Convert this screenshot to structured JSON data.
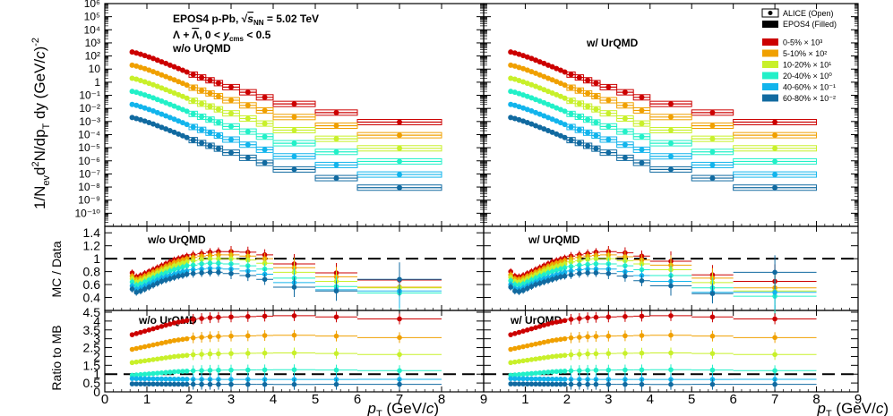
{
  "chart_data": {
    "type": "scatter",
    "title": "EPOS4 p-Pb, √s_NN = 5.02 TeV",
    "title_parts": {
      "pre": "EPOS4 p-Pb, √",
      "s": "s",
      "sub": "NN",
      "post": " = 5.02 TeV"
    },
    "subtitle": "Λ + Λ̄, 0 < y_cms < 0.5",
    "subtitle_parts": {
      "pre": "Λ + ",
      "bar": "Λ",
      "mid": ", 0 < ",
      "y": "y",
      "sub": "cms",
      "post": " < 0.5"
    },
    "xlabel": "p_T (GeV/c)",
    "xlabel_parts": {
      "p": "p",
      "sub": "T",
      "mid": " (GeV/",
      "c": "c",
      "post": ")"
    },
    "ylabel_spectra": "1/N_ev d²N/dp_T dy (GeV/c)⁻²",
    "ylabel_spectra_parts": {
      "a": "1/N",
      "ev": "ev",
      "b": "d",
      "sup2": "2",
      "c": "N/dp",
      "T": "T",
      "d": " dy (GeV/",
      "e": "c",
      "f": ")",
      "sup": "-2"
    },
    "ylabel_ratio": "MC / Data",
    "ylabel_mb": "Ratio to MB",
    "xlim": [
      0,
      9
    ],
    "x_ticks": [
      "0",
      "1",
      "2",
      "3",
      "4",
      "5",
      "6",
      "7",
      "8",
      "9"
    ],
    "x_tick_values": [
      0,
      1,
      2,
      3,
      4,
      5,
      6,
      7,
      8,
      9
    ],
    "panel_labels": {
      "left": "w/o UrQMD",
      "right": "w/ UrQMD"
    },
    "legend_position": "top-right",
    "legend_markers": [
      {
        "label": "ALICE  (Open)",
        "style": "open"
      },
      {
        "label": "EPOS4 (Filled)",
        "style": "filled"
      }
    ],
    "classes": [
      {
        "label": "0-5% × 10³",
        "color": "#cc0000",
        "scale": 1000,
        "mb_ratio": 4.3
      },
      {
        "label": "5-10% × 10²",
        "color": "#f0a000",
        "scale": 100,
        "mb_ratio": 3.2
      },
      {
        "label": "10-20% × 10¹",
        "color": "#c8f02a",
        "scale": 10,
        "mb_ratio": 2.2
      },
      {
        "label": "20-40% × 10⁰",
        "color": "#22f0c8",
        "scale": 1,
        "mb_ratio": 1.25
      },
      {
        "label": "40-60% × 10⁻¹",
        "color": "#12b4ec",
        "scale": 0.1,
        "mb_ratio": 0.7
      },
      {
        "label": "60-80% × 10⁻²",
        "color": "#116aa0",
        "scale": 0.01,
        "mb_ratio": 0.42
      }
    ],
    "pt_bins": [
      {
        "x": 0.65,
        "lo": 0.6,
        "hi": 0.7,
        "base": 0.2
      },
      {
        "x": 0.75,
        "lo": 0.7,
        "hi": 0.8,
        "base": 0.17
      },
      {
        "x": 0.85,
        "lo": 0.8,
        "hi": 0.9,
        "base": 0.135
      },
      {
        "x": 0.95,
        "lo": 0.9,
        "hi": 1.0,
        "base": 0.107
      },
      {
        "x": 1.05,
        "lo": 1.0,
        "hi": 1.1,
        "base": 0.083
      },
      {
        "x": 1.15,
        "lo": 1.1,
        "hi": 1.2,
        "base": 0.064
      },
      {
        "x": 1.25,
        "lo": 1.2,
        "hi": 1.3,
        "base": 0.048
      },
      {
        "x": 1.35,
        "lo": 1.3,
        "hi": 1.4,
        "base": 0.036
      },
      {
        "x": 1.45,
        "lo": 1.4,
        "hi": 1.5,
        "base": 0.027
      },
      {
        "x": 1.55,
        "lo": 1.5,
        "hi": 1.6,
        "base": 0.02
      },
      {
        "x": 1.65,
        "lo": 1.6,
        "hi": 1.7,
        "base": 0.015
      },
      {
        "x": 1.75,
        "lo": 1.7,
        "hi": 1.8,
        "base": 0.011
      },
      {
        "x": 1.85,
        "lo": 1.8,
        "hi": 1.9,
        "base": 0.0082
      },
      {
        "x": 1.95,
        "lo": 1.9,
        "hi": 2.0,
        "base": 0.006
      },
      {
        "x": 2.1,
        "lo": 2.0,
        "hi": 2.2,
        "base": 0.0038
      },
      {
        "x": 2.3,
        "lo": 2.2,
        "hi": 2.4,
        "base": 0.0023
      },
      {
        "x": 2.5,
        "lo": 2.4,
        "hi": 2.6,
        "base": 0.0014
      },
      {
        "x": 2.7,
        "lo": 2.6,
        "hi": 2.8,
        "base": 0.00085
      },
      {
        "x": 3.0,
        "lo": 2.8,
        "hi": 3.2,
        "base": 0.00042
      },
      {
        "x": 3.4,
        "lo": 3.2,
        "hi": 3.6,
        "base": 0.00017
      },
      {
        "x": 3.8,
        "lo": 3.6,
        "hi": 4.0,
        "base": 7e-05
      },
      {
        "x": 4.5,
        "lo": 4.0,
        "hi": 5.0,
        "base": 2.2e-05
      },
      {
        "x": 5.5,
        "lo": 5.0,
        "hi": 6.0,
        "base": 4.8e-06
      },
      {
        "x": 7.0,
        "lo": 6.0,
        "hi": 8.0,
        "base": 9e-07
      }
    ],
    "spectra_panel": {
      "yscale": "log",
      "ylim": [
        1e-11,
        1000000.0
      ],
      "y_ticks": [
        "10⁻¹⁰",
        "10⁻⁹",
        "10⁻⁸",
        "10⁻⁷",
        "10⁻⁶",
        "10⁻⁵",
        "10⁻⁴",
        "10⁻³",
        "10⁻²",
        "10⁻¹",
        "1",
        "10",
        "10²",
        "10³",
        "10⁴",
        "10⁵",
        "10⁶"
      ],
      "y_tick_exponents": [
        -10,
        -9,
        -8,
        -7,
        -6,
        -5,
        -4,
        -3,
        -2,
        -1,
        0,
        1,
        2,
        3,
        4,
        5,
        6
      ]
    },
    "mc_data_panel": {
      "ylim": [
        0.2,
        1.5
      ],
      "y_ticks": [
        "0.4",
        "0.6",
        "0.8",
        "1",
        "1.2",
        "1.4"
      ],
      "y_tick_values": [
        0.4,
        0.6,
        0.8,
        1.0,
        1.2,
        1.4
      ],
      "reference_line": 1.0,
      "ratio_points_x": [
        0.65,
        0.75,
        0.85,
        0.95,
        1.05,
        1.15,
        1.25,
        1.35,
        1.45,
        1.55,
        1.65,
        1.75,
        1.85,
        1.95,
        2.1,
        2.3,
        2.5,
        2.7,
        3.0,
        3.4,
        3.8,
        4.5,
        5.5,
        7.0
      ],
      "left": {
        "0-5%": [
          0.78,
          0.72,
          0.74,
          0.77,
          0.8,
          0.83,
          0.86,
          0.89,
          0.92,
          0.95,
          0.98,
          1.0,
          1.02,
          1.04,
          1.06,
          1.08,
          1.1,
          1.11,
          1.11,
          1.1,
          1.06,
          0.92,
          0.78,
          0.67
        ],
        "5-10%": [
          0.73,
          0.68,
          0.7,
          0.73,
          0.76,
          0.79,
          0.82,
          0.85,
          0.88,
          0.91,
          0.94,
          0.96,
          0.98,
          1.0,
          1.02,
          1.04,
          1.05,
          1.06,
          1.06,
          1.04,
          1.0,
          0.86,
          0.72,
          0.56
        ],
        "10-20%": [
          0.69,
          0.64,
          0.66,
          0.69,
          0.72,
          0.75,
          0.78,
          0.81,
          0.84,
          0.86,
          0.89,
          0.91,
          0.93,
          0.95,
          0.97,
          0.99,
          1.0,
          1.0,
          1.0,
          0.98,
          0.93,
          0.79,
          0.65,
          0.55
        ],
        "20-40%": [
          0.64,
          0.59,
          0.61,
          0.64,
          0.67,
          0.7,
          0.73,
          0.76,
          0.78,
          0.81,
          0.83,
          0.85,
          0.87,
          0.89,
          0.9,
          0.92,
          0.93,
          0.93,
          0.92,
          0.89,
          0.84,
          0.7,
          0.57,
          0.47
        ],
        "40-60%": [
          0.58,
          0.53,
          0.55,
          0.58,
          0.61,
          0.64,
          0.67,
          0.7,
          0.72,
          0.74,
          0.76,
          0.78,
          0.8,
          0.81,
          0.83,
          0.84,
          0.85,
          0.85,
          0.84,
          0.81,
          0.76,
          0.63,
          0.52,
          0.5
        ],
        "60-80%": [
          0.53,
          0.48,
          0.5,
          0.53,
          0.56,
          0.59,
          0.62,
          0.65,
          0.67,
          0.69,
          0.71,
          0.73,
          0.74,
          0.76,
          0.77,
          0.78,
          0.79,
          0.79,
          0.77,
          0.74,
          0.68,
          0.56,
          0.5,
          0.68
        ]
      },
      "right": {
        "0-5%": [
          0.8,
          0.73,
          0.72,
          0.74,
          0.77,
          0.8,
          0.83,
          0.86,
          0.89,
          0.92,
          0.95,
          0.97,
          0.99,
          1.01,
          1.04,
          1.06,
          1.08,
          1.1,
          1.11,
          1.09,
          1.04,
          0.96,
          0.75,
          0.65
        ],
        "5-10%": [
          0.75,
          0.69,
          0.68,
          0.7,
          0.73,
          0.76,
          0.79,
          0.82,
          0.85,
          0.88,
          0.91,
          0.93,
          0.95,
          0.97,
          1.0,
          1.02,
          1.04,
          1.05,
          1.06,
          1.03,
          0.98,
          0.9,
          0.7,
          0.55
        ],
        "10-20%": [
          0.71,
          0.65,
          0.64,
          0.66,
          0.69,
          0.72,
          0.75,
          0.78,
          0.81,
          0.84,
          0.86,
          0.88,
          0.9,
          0.92,
          0.95,
          0.97,
          0.99,
          1.0,
          1.0,
          0.97,
          0.92,
          0.83,
          0.63,
          0.5
        ],
        "20-40%": [
          0.66,
          0.6,
          0.59,
          0.61,
          0.64,
          0.67,
          0.7,
          0.73,
          0.75,
          0.78,
          0.8,
          0.82,
          0.84,
          0.86,
          0.88,
          0.9,
          0.91,
          0.92,
          0.92,
          0.89,
          0.83,
          0.74,
          0.55,
          0.42
        ],
        "40-60%": [
          0.6,
          0.54,
          0.53,
          0.55,
          0.58,
          0.61,
          0.64,
          0.67,
          0.69,
          0.71,
          0.73,
          0.75,
          0.77,
          0.79,
          0.81,
          0.83,
          0.84,
          0.84,
          0.84,
          0.8,
          0.74,
          0.65,
          0.48,
          0.48
        ],
        "60-80%": [
          0.56,
          0.5,
          0.49,
          0.51,
          0.54,
          0.57,
          0.6,
          0.62,
          0.64,
          0.66,
          0.68,
          0.7,
          0.72,
          0.73,
          0.75,
          0.77,
          0.78,
          0.78,
          0.77,
          0.73,
          0.66,
          0.58,
          0.46,
          0.79
        ]
      }
    },
    "mb_panel": {
      "ylim": [
        0,
        4.6
      ],
      "y_ticks": [
        "0",
        "0.5",
        "1",
        "1.5",
        "2",
        "2.5",
        "3",
        "3.5",
        "4",
        "4.5"
      ],
      "y_tick_values": [
        0,
        0.5,
        1,
        1.5,
        2,
        2.5,
        3,
        3.5,
        4,
        4.5
      ],
      "reference_line": 1.0,
      "shape_note": "ratio rises from ~0.55 of plateau at low pT to plateau near 3-4 GeV/c",
      "plateau_fraction_by_x": [
        0.52,
        0.55,
        0.58,
        0.61,
        0.64,
        0.67,
        0.7,
        0.73,
        0.76,
        0.79,
        0.82,
        0.84,
        0.86,
        0.88,
        0.91,
        0.93,
        0.95,
        0.96,
        0.97,
        0.98,
        0.99,
        1.0,
        0.97,
        0.92
      ]
    }
  }
}
